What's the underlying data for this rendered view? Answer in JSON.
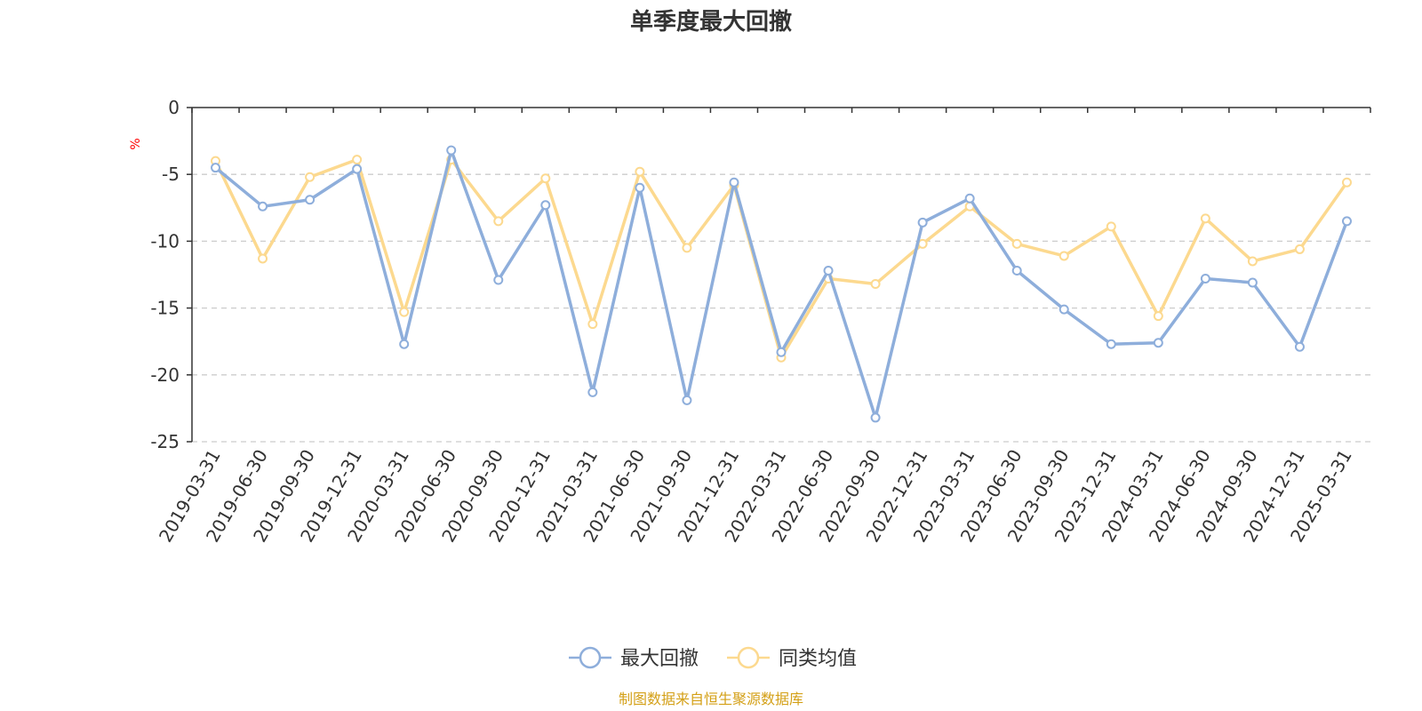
{
  "chart_data": {
    "type": "line",
    "title": "单季度最大回撤",
    "ylabel": "%",
    "xlabel": "",
    "ylim": [
      -25,
      0
    ],
    "yticks": [
      0,
      -5,
      -10,
      -15,
      -20,
      -25
    ],
    "grid": true,
    "legend_position": "bottom",
    "categories": [
      "2019-03-31",
      "2019-06-30",
      "2019-09-30",
      "2019-12-31",
      "2020-03-31",
      "2020-06-30",
      "2020-09-30",
      "2020-12-31",
      "2021-03-31",
      "2021-06-30",
      "2021-09-30",
      "2021-12-31",
      "2022-03-31",
      "2022-06-30",
      "2022-09-30",
      "2022-12-31",
      "2023-03-31",
      "2023-06-30",
      "2023-09-30",
      "2023-12-31",
      "2024-03-31",
      "2024-06-30",
      "2024-09-30",
      "2024-12-31",
      "2025-03-31"
    ],
    "series": [
      {
        "name": "最大回撤",
        "color": "#8eaedb",
        "values": [
          -4.5,
          -7.4,
          -6.9,
          -4.6,
          -17.7,
          -3.2,
          -12.9,
          -7.3,
          -21.3,
          -6.0,
          -21.9,
          -5.6,
          -18.3,
          -12.2,
          -23.2,
          -8.6,
          -6.8,
          -12.2,
          -15.1,
          -17.7,
          -17.6,
          -12.8,
          -13.1,
          -17.9,
          -8.5
        ]
      },
      {
        "name": "同类均值",
        "color": "#fcd98f",
        "values": [
          -4.0,
          -11.3,
          -5.2,
          -3.9,
          -15.3,
          -3.9,
          -8.5,
          -5.3,
          -16.2,
          -4.8,
          -10.5,
          -5.8,
          -18.7,
          -12.8,
          -13.2,
          -10.2,
          -7.4,
          -10.2,
          -11.1,
          -8.9,
          -15.6,
          -8.3,
          -11.5,
          -10.6,
          -5.6
        ]
      }
    ],
    "source": "制图数据来自恒生聚源数据库"
  }
}
